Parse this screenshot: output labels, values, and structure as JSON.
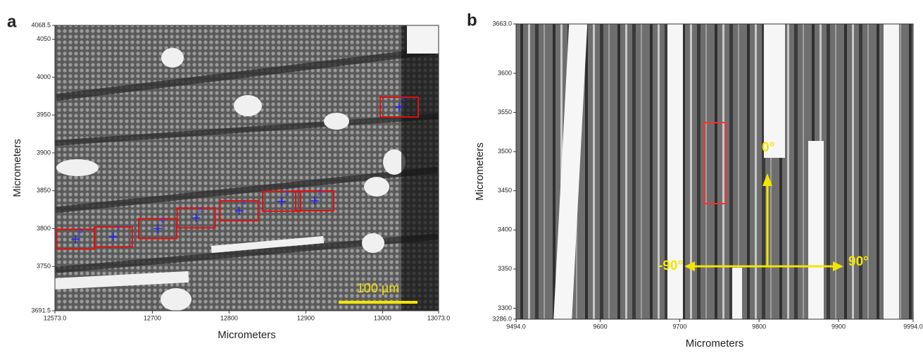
{
  "chart_data": [
    {
      "type": "image",
      "panel": "a",
      "x_label": "Micrometers",
      "y_label": "Micrometers",
      "xlim": [
        12573,
        13073
      ],
      "xticks": [
        {
          "value": 12573,
          "label": "12573.0"
        },
        12700,
        12800,
        12900,
        13000,
        {
          "value": 13073,
          "label": "13073.0"
        }
      ],
      "ylim": [
        3691.5,
        4068.5
      ],
      "yticks": [
        3691.5,
        3750,
        3800,
        3850,
        3900,
        3950,
        4000,
        4050,
        4068.5
      ],
      "scale_bar": "100 µm",
      "points": {
        "labels": [
          "1",
          "2",
          "3",
          "4",
          "5",
          "6",
          "7",
          "8"
        ],
        "x": [
          13021.6,
          12911.5,
          12868.4,
          12813,
          12757,
          12707,
          12649,
          12600
        ],
        "y": [
          3960.5,
          3836.7,
          3836,
          3823.6,
          3814,
          3800,
          3789,
          3786
        ]
      }
    },
    {
      "type": "image",
      "panel": "b",
      "x_label": "Micrometers",
      "y_label": "Micrometers",
      "xlim": [
        9494,
        9994
      ],
      "xticks": [
        {
          "value": 9494,
          "label": "9494.0"
        },
        9600,
        9700,
        9800,
        9900,
        {
          "value": 9994,
          "label": "9994.0"
        }
      ],
      "ylim": [
        3286,
        3663
      ],
      "yticks": [
        {
          "value": 3286,
          "label": "3286.0"
        },
        3300,
        3350,
        3400,
        3450,
        3500,
        3550,
        3600,
        {
          "value": 3663,
          "label": "3663.0"
        }
      ],
      "annotations": [
        "0°",
        "-90°",
        "90°"
      ]
    }
  ]
}
